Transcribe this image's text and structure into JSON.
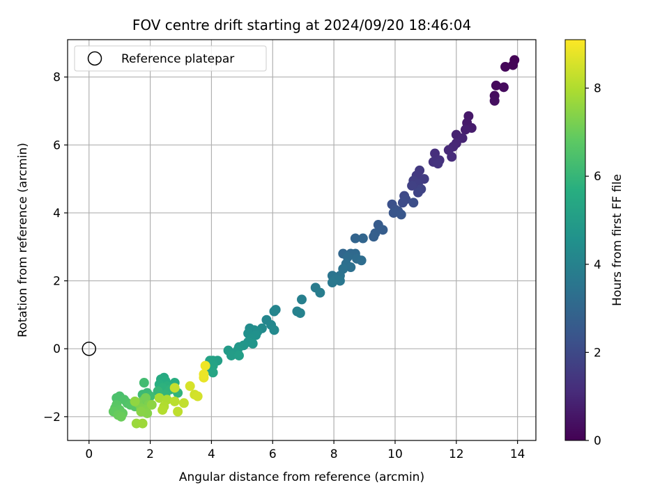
{
  "chart_data": {
    "type": "scatter",
    "title": "FOV centre drift starting at 2024/09/20 18:46:04",
    "xlabel": "Angular distance from reference (arcmin)",
    "ylabel": "Rotation from reference (arcmin)",
    "xlim": [
      -0.7,
      14.6
    ],
    "ylim": [
      -2.7,
      9.1
    ],
    "xticks": [
      0,
      2,
      4,
      6,
      8,
      10,
      12,
      14
    ],
    "yticks": [
      -2,
      0,
      2,
      4,
      6,
      8
    ],
    "xtick_labels": [
      "0",
      "2",
      "4",
      "6",
      "8",
      "10",
      "12",
      "14"
    ],
    "ytick_labels": [
      "−2",
      "0",
      "2",
      "4",
      "6",
      "8"
    ],
    "grid": true,
    "legend": {
      "position": "top-left",
      "entries": [
        "Reference platepar"
      ]
    },
    "reference_point": {
      "x": 0,
      "y": 0
    },
    "colorbar": {
      "label": "Hours from first FF file",
      "colormap": "viridis",
      "range": [
        0,
        9.1
      ],
      "ticks": [
        0,
        2,
        4,
        6,
        8
      ],
      "tick_labels": [
        "0",
        "2",
        "4",
        "6",
        "8"
      ]
    },
    "points": [
      {
        "x": 13.9,
        "y": 8.5,
        "c": 0.05
      },
      {
        "x": 13.85,
        "y": 8.35,
        "c": 0.1
      },
      {
        "x": 13.6,
        "y": 8.3,
        "c": 0.15
      },
      {
        "x": 13.3,
        "y": 7.75,
        "c": 0.2
      },
      {
        "x": 13.55,
        "y": 7.7,
        "c": 0.25
      },
      {
        "x": 13.25,
        "y": 7.45,
        "c": 0.3
      },
      {
        "x": 13.25,
        "y": 7.3,
        "c": 0.35
      },
      {
        "x": 12.4,
        "y": 6.85,
        "c": 0.6
      },
      {
        "x": 12.35,
        "y": 6.65,
        "c": 0.65
      },
      {
        "x": 12.5,
        "y": 6.5,
        "c": 0.7
      },
      {
        "x": 12.3,
        "y": 6.45,
        "c": 0.75
      },
      {
        "x": 12.0,
        "y": 6.3,
        "c": 0.85
      },
      {
        "x": 12.2,
        "y": 6.2,
        "c": 0.9
      },
      {
        "x": 12.0,
        "y": 6.05,
        "c": 0.95
      },
      {
        "x": 11.9,
        "y": 5.95,
        "c": 1.0
      },
      {
        "x": 11.75,
        "y": 5.85,
        "c": 1.05
      },
      {
        "x": 11.85,
        "y": 5.65,
        "c": 1.1
      },
      {
        "x": 11.3,
        "y": 5.75,
        "c": 1.2
      },
      {
        "x": 11.45,
        "y": 5.55,
        "c": 1.25
      },
      {
        "x": 11.25,
        "y": 5.5,
        "c": 1.3
      },
      {
        "x": 11.4,
        "y": 5.45,
        "c": 1.35
      },
      {
        "x": 10.8,
        "y": 5.25,
        "c": 1.5
      },
      {
        "x": 10.7,
        "y": 5.1,
        "c": 1.55
      },
      {
        "x": 10.95,
        "y": 5.0,
        "c": 1.6
      },
      {
        "x": 10.6,
        "y": 4.95,
        "c": 1.65
      },
      {
        "x": 10.75,
        "y": 4.85,
        "c": 1.7
      },
      {
        "x": 10.55,
        "y": 4.8,
        "c": 1.75
      },
      {
        "x": 10.85,
        "y": 4.7,
        "c": 1.8
      },
      {
        "x": 10.75,
        "y": 4.6,
        "c": 1.85
      },
      {
        "x": 10.3,
        "y": 4.5,
        "c": 2.0
      },
      {
        "x": 10.35,
        "y": 4.4,
        "c": 2.05
      },
      {
        "x": 10.25,
        "y": 4.3,
        "c": 2.1
      },
      {
        "x": 10.6,
        "y": 4.3,
        "c": 2.15
      },
      {
        "x": 9.9,
        "y": 4.25,
        "c": 2.25
      },
      {
        "x": 10.0,
        "y": 4.1,
        "c": 2.3
      },
      {
        "x": 10.1,
        "y": 4.05,
        "c": 2.35
      },
      {
        "x": 9.95,
        "y": 4.0,
        "c": 2.4
      },
      {
        "x": 10.2,
        "y": 3.95,
        "c": 2.45
      },
      {
        "x": 9.45,
        "y": 3.65,
        "c": 2.6
      },
      {
        "x": 9.6,
        "y": 3.5,
        "c": 2.65
      },
      {
        "x": 9.35,
        "y": 3.4,
        "c": 2.7
      },
      {
        "x": 9.3,
        "y": 3.3,
        "c": 2.75
      },
      {
        "x": 8.7,
        "y": 3.25,
        "c": 2.9
      },
      {
        "x": 8.95,
        "y": 3.25,
        "c": 2.95
      },
      {
        "x": 8.3,
        "y": 2.8,
        "c": 3.0
      },
      {
        "x": 8.55,
        "y": 2.8,
        "c": 3.05
      },
      {
        "x": 8.7,
        "y": 2.8,
        "c": 3.1
      },
      {
        "x": 8.45,
        "y": 2.7,
        "c": 3.15
      },
      {
        "x": 8.75,
        "y": 2.65,
        "c": 3.2
      },
      {
        "x": 8.9,
        "y": 2.6,
        "c": 3.25
      },
      {
        "x": 8.4,
        "y": 2.5,
        "c": 3.3
      },
      {
        "x": 8.55,
        "y": 2.4,
        "c": 3.35
      },
      {
        "x": 8.3,
        "y": 2.35,
        "c": 3.4
      },
      {
        "x": 8.2,
        "y": 2.15,
        "c": 3.45
      },
      {
        "x": 7.95,
        "y": 2.15,
        "c": 3.5
      },
      {
        "x": 8.05,
        "y": 2.05,
        "c": 3.55
      },
      {
        "x": 8.2,
        "y": 2.0,
        "c": 3.6
      },
      {
        "x": 7.95,
        "y": 1.95,
        "c": 3.65
      },
      {
        "x": 7.4,
        "y": 1.8,
        "c": 3.75
      },
      {
        "x": 7.55,
        "y": 1.65,
        "c": 3.8
      },
      {
        "x": 6.95,
        "y": 1.45,
        "c": 3.9
      },
      {
        "x": 6.8,
        "y": 1.1,
        "c": 3.95
      },
      {
        "x": 6.9,
        "y": 1.05,
        "c": 4.0
      },
      {
        "x": 6.1,
        "y": 1.15,
        "c": 4.05
      },
      {
        "x": 6.05,
        "y": 1.1,
        "c": 4.1
      },
      {
        "x": 5.8,
        "y": 0.85,
        "c": 4.15
      },
      {
        "x": 5.95,
        "y": 0.7,
        "c": 4.2
      },
      {
        "x": 6.05,
        "y": 0.55,
        "c": 4.25
      },
      {
        "x": 5.65,
        "y": 0.6,
        "c": 4.3
      },
      {
        "x": 5.25,
        "y": 0.6,
        "c": 4.35
      },
      {
        "x": 5.4,
        "y": 0.55,
        "c": 4.4
      },
      {
        "x": 5.5,
        "y": 0.5,
        "c": 4.45
      },
      {
        "x": 5.2,
        "y": 0.45,
        "c": 4.5
      },
      {
        "x": 5.45,
        "y": 0.4,
        "c": 4.55
      },
      {
        "x": 5.3,
        "y": 0.3,
        "c": 4.6
      },
      {
        "x": 5.2,
        "y": 0.2,
        "c": 4.65
      },
      {
        "x": 5.35,
        "y": 0.15,
        "c": 4.7
      },
      {
        "x": 5.05,
        "y": 0.1,
        "c": 4.75
      },
      {
        "x": 4.9,
        "y": 0.05,
        "c": 4.8
      },
      {
        "x": 4.85,
        "y": -0.05,
        "c": 4.85
      },
      {
        "x": 4.55,
        "y": -0.05,
        "c": 4.9
      },
      {
        "x": 4.8,
        "y": -0.15,
        "c": 4.95
      },
      {
        "x": 4.65,
        "y": -0.2,
        "c": 5.0
      },
      {
        "x": 4.9,
        "y": -0.2,
        "c": 5.05
      },
      {
        "x": 4.2,
        "y": -0.35,
        "c": 5.1
      },
      {
        "x": 4.05,
        "y": -0.35,
        "c": 5.15
      },
      {
        "x": 3.95,
        "y": -0.35,
        "c": 5.2
      },
      {
        "x": 4.05,
        "y": -0.5,
        "c": 5.25
      },
      {
        "x": 4.0,
        "y": -0.6,
        "c": 5.3
      },
      {
        "x": 4.05,
        "y": -0.7,
        "c": 5.35
      },
      {
        "x": 2.45,
        "y": -0.85,
        "c": 5.5
      },
      {
        "x": 2.35,
        "y": -0.9,
        "c": 5.55
      },
      {
        "x": 2.5,
        "y": -0.95,
        "c": 5.6
      },
      {
        "x": 2.8,
        "y": -1.0,
        "c": 5.65
      },
      {
        "x": 2.3,
        "y": -1.05,
        "c": 5.7
      },
      {
        "x": 2.55,
        "y": -1.1,
        "c": 5.75
      },
      {
        "x": 2.4,
        "y": -1.15,
        "c": 5.8
      },
      {
        "x": 2.65,
        "y": -1.2,
        "c": 5.85
      },
      {
        "x": 2.9,
        "y": -1.3,
        "c": 5.9
      },
      {
        "x": 2.5,
        "y": -1.35,
        "c": 5.95
      },
      {
        "x": 2.25,
        "y": -1.25,
        "c": 6.0
      },
      {
        "x": 1.9,
        "y": -1.3,
        "c": 6.1
      },
      {
        "x": 1.75,
        "y": -1.35,
        "c": 6.15
      },
      {
        "x": 2.0,
        "y": -1.4,
        "c": 6.2
      },
      {
        "x": 1.8,
        "y": -1.0,
        "c": 6.25
      },
      {
        "x": 1.0,
        "y": -1.4,
        "c": 6.4
      },
      {
        "x": 0.9,
        "y": -1.45,
        "c": 6.45
      },
      {
        "x": 1.15,
        "y": -1.5,
        "c": 6.5
      },
      {
        "x": 1.25,
        "y": -1.6,
        "c": 6.55
      },
      {
        "x": 1.35,
        "y": -1.65,
        "c": 6.6
      },
      {
        "x": 1.5,
        "y": -1.7,
        "c": 6.65
      },
      {
        "x": 0.9,
        "y": -1.65,
        "c": 6.7
      },
      {
        "x": 0.85,
        "y": -1.75,
        "c": 6.75
      },
      {
        "x": 1.0,
        "y": -1.8,
        "c": 6.8
      },
      {
        "x": 0.8,
        "y": -1.85,
        "c": 6.85
      },
      {
        "x": 1.1,
        "y": -1.9,
        "c": 6.9
      },
      {
        "x": 0.95,
        "y": -1.95,
        "c": 6.95
      },
      {
        "x": 1.05,
        "y": -2.0,
        "c": 7.0
      },
      {
        "x": 1.75,
        "y": -1.55,
        "c": 7.1
      },
      {
        "x": 1.85,
        "y": -1.45,
        "c": 7.15
      },
      {
        "x": 1.6,
        "y": -1.6,
        "c": 7.2
      },
      {
        "x": 1.95,
        "y": -1.65,
        "c": 7.25
      },
      {
        "x": 1.7,
        "y": -1.75,
        "c": 7.3
      },
      {
        "x": 1.85,
        "y": -1.8,
        "c": 7.35
      },
      {
        "x": 1.9,
        "y": -1.9,
        "c": 7.4
      },
      {
        "x": 1.7,
        "y": -1.85,
        "c": 7.45
      },
      {
        "x": 2.05,
        "y": -1.65,
        "c": 7.5
      },
      {
        "x": 1.5,
        "y": -1.55,
        "c": 7.55
      },
      {
        "x": 1.55,
        "y": -2.2,
        "c": 7.7
      },
      {
        "x": 1.75,
        "y": -2.2,
        "c": 7.75
      },
      {
        "x": 2.3,
        "y": -1.45,
        "c": 7.9
      },
      {
        "x": 2.55,
        "y": -1.5,
        "c": 7.95
      },
      {
        "x": 2.45,
        "y": -1.7,
        "c": 8.0
      },
      {
        "x": 2.4,
        "y": -1.8,
        "c": 8.05
      },
      {
        "x": 2.8,
        "y": -1.55,
        "c": 8.15
      },
      {
        "x": 2.9,
        "y": -1.85,
        "c": 8.2
      },
      {
        "x": 3.1,
        "y": -1.6,
        "c": 8.25
      },
      {
        "x": 2.8,
        "y": -1.15,
        "c": 8.3
      },
      {
        "x": 3.45,
        "y": -1.35,
        "c": 8.45
      },
      {
        "x": 3.55,
        "y": -1.4,
        "c": 8.5
      },
      {
        "x": 3.3,
        "y": -1.1,
        "c": 8.55
      },
      {
        "x": 3.75,
        "y": -0.85,
        "c": 8.8
      },
      {
        "x": 3.75,
        "y": -0.75,
        "c": 8.85
      },
      {
        "x": 3.8,
        "y": -0.5,
        "c": 8.9
      }
    ]
  }
}
